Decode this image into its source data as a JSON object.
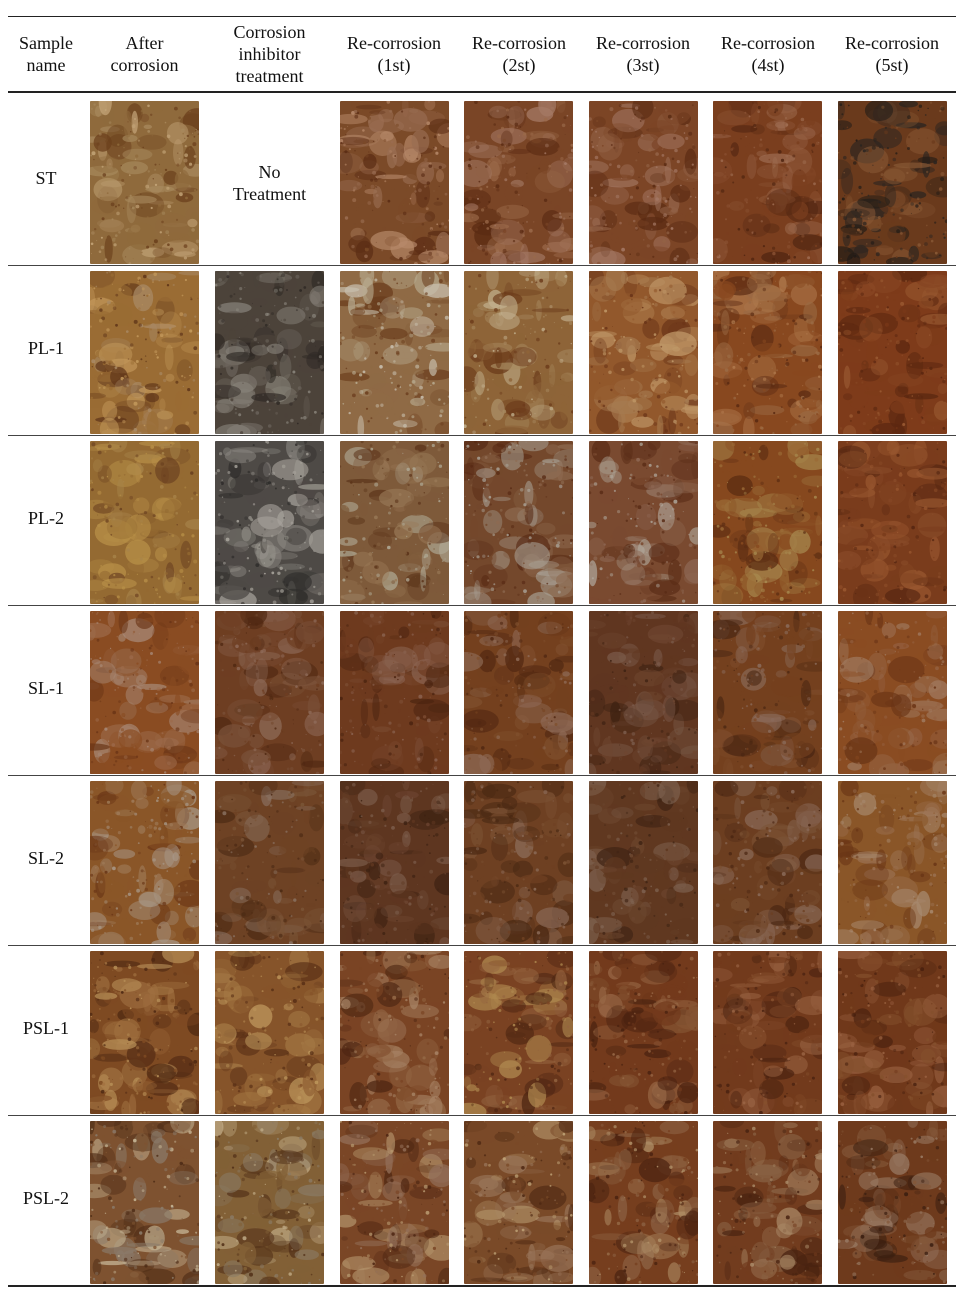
{
  "table": {
    "headers": [
      "Sample\nname",
      "After\ncorrosion",
      "Corrosion\ninhibitor\ntreatment",
      "Re-corrosion\n(1st)",
      "Re-corrosion\n(2st)",
      "Re-corrosion\n(3st)",
      "Re-corrosion\n(4st)",
      "Re-corrosion\n(5st)"
    ],
    "rows": [
      {
        "name": "ST",
        "treatment_text": "No\nTreatment",
        "photos": [
          {
            "desc": "rust-photo",
            "base": "#8f6a3c",
            "c1": "#c3a478",
            "c2": "#6b3f1c",
            "c3": "#a88a5e"
          },
          null,
          {
            "desc": "rust-photo",
            "base": "#7b4a28",
            "c1": "#b7896a",
            "c2": "#5b2c14",
            "c3": "#9a6d52"
          },
          {
            "desc": "rust-photo",
            "base": "#7a4526",
            "c1": "#a57a66",
            "c2": "#5a2a12",
            "c3": "#9b6a4a"
          },
          {
            "desc": "rust-photo",
            "base": "#7c4526",
            "c1": "#a47864",
            "c2": "#5b2b13",
            "c3": "#936246"
          },
          {
            "desc": "rust-photo",
            "base": "#7a3e1e",
            "c1": "#9d6b50",
            "c2": "#4f2410",
            "c3": "#8c5334"
          },
          {
            "desc": "rust-photo",
            "base": "#6a3a1c",
            "c1": "#1f1a16",
            "c2": "#8a5a36",
            "c3": "#2a2420"
          }
        ]
      },
      {
        "name": "PL-1",
        "photos": [
          {
            "desc": "rust-photo",
            "base": "#9a6c34",
            "c1": "#c49a5c",
            "c2": "#5e3418",
            "c3": "#a98a66"
          },
          {
            "desc": "rust-photo",
            "base": "#4c433a",
            "c1": "#6d665e",
            "c2": "#2e2824",
            "c3": "#8a857c"
          },
          {
            "desc": "rust-photo",
            "base": "#8f6a45",
            "c1": "#c8bfae",
            "c2": "#6a3c1c",
            "c3": "#b8ab90"
          },
          {
            "desc": "rust-photo",
            "base": "#8e6438",
            "c1": "#c2b08e",
            "c2": "#6b3a1a",
            "c3": "#a88a60"
          },
          {
            "desc": "rust-photo",
            "base": "#92582c",
            "c1": "#c09868",
            "c2": "#6a3418",
            "c3": "#a57a50"
          },
          {
            "desc": "rust-photo",
            "base": "#88481f",
            "c1": "#b07a4e",
            "c2": "#5a2a12",
            "c3": "#9a6a44"
          },
          {
            "desc": "rust-photo",
            "base": "#7e3b1a",
            "c1": "#9a5a32",
            "c2": "#5b2710",
            "c3": "#8a4a26"
          }
        ]
      },
      {
        "name": "PL-2",
        "photos": [
          {
            "desc": "rust-photo",
            "base": "#946a32",
            "c1": "#b89048",
            "c2": "#6a4020",
            "c3": "#a8844a"
          },
          {
            "desc": "rust-photo",
            "base": "#4e4a46",
            "c1": "#8e8a84",
            "c2": "#2e2c2a",
            "c3": "#a8a49c"
          },
          {
            "desc": "rust-photo",
            "base": "#7e5a3a",
            "c1": "#b0aa96",
            "c2": "#5a3218",
            "c3": "#9a7a58"
          },
          {
            "desc": "rust-photo",
            "base": "#74482c",
            "c1": "#a8a094",
            "c2": "#582a14",
            "c3": "#8e6a50"
          },
          {
            "desc": "rust-photo",
            "base": "#7a4a30",
            "c1": "#b0a89c",
            "c2": "#5a2c16",
            "c3": "#8e6854"
          },
          {
            "desc": "rust-photo",
            "base": "#86481e",
            "c1": "#a88a50",
            "c2": "#5a2c12",
            "c3": "#9a6a36"
          },
          {
            "desc": "rust-photo",
            "base": "#7a3c1c",
            "c1": "#9a5830",
            "c2": "#522410",
            "c3": "#884a28"
          }
        ]
      },
      {
        "name": "SL-1",
        "photos": [
          {
            "desc": "rust-photo",
            "base": "#8a4c22",
            "c1": "#a88a78",
            "c2": "#6a3416",
            "c3": "#9c6a4a"
          },
          {
            "desc": "rust-photo",
            "base": "#6e3e22",
            "c1": "#8e6a58",
            "c2": "#502812",
            "c3": "#7a5038"
          },
          {
            "desc": "rust-photo",
            "base": "#6e3a1e",
            "c1": "#8a6250",
            "c2": "#4c2410",
            "c3": "#7a4a30"
          },
          {
            "desc": "rust-photo",
            "base": "#74401e",
            "c1": "#8e6a56",
            "c2": "#522812",
            "c3": "#80502e"
          },
          {
            "desc": "rust-photo",
            "base": "#603620",
            "c1": "#7a5a4a",
            "c2": "#3e2212",
            "c3": "#6e4630"
          },
          {
            "desc": "rust-photo",
            "base": "#74401e",
            "c1": "#8a6a5a",
            "c2": "#4a2612",
            "c3": "#7e4c2c"
          },
          {
            "desc": "rust-photo",
            "base": "#8a4c22",
            "c1": "#a07a60",
            "c2": "#6a3416",
            "c3": "#946040"
          }
        ]
      },
      {
        "name": "SL-2",
        "photos": [
          {
            "desc": "rust-photo",
            "base": "#8a5628",
            "c1": "#a89888",
            "c2": "#6a3616",
            "c3": "#9e7a58"
          },
          {
            "desc": "rust-photo",
            "base": "#6e4224",
            "c1": "#8a7262",
            "c2": "#4c2a14",
            "c3": "#7a5436"
          },
          {
            "desc": "rust-photo",
            "base": "#5e3620",
            "c1": "#7a5a48",
            "c2": "#3e2212",
            "c3": "#6c4430"
          },
          {
            "desc": "rust-photo",
            "base": "#6e4022",
            "c1": "#8c6c5a",
            "c2": "#4a2812",
            "c3": "#7c5234"
          },
          {
            "desc": "rust-photo",
            "base": "#603820",
            "c1": "#7e6250",
            "c2": "#402414",
            "c3": "#6e4830"
          },
          {
            "desc": "rust-photo",
            "base": "#6c3e20",
            "c1": "#8a6a58",
            "c2": "#4a2612",
            "c3": "#7a5032"
          },
          {
            "desc": "rust-photo",
            "base": "#8a5628",
            "c1": "#a88a70",
            "c2": "#6a3616",
            "c3": "#9a7050"
          }
        ]
      },
      {
        "name": "PSL-1",
        "photos": [
          {
            "desc": "rust-photo",
            "base": "#7e4a22",
            "c1": "#b89058",
            "c2": "#4e2812",
            "c3": "#a07040"
          },
          {
            "desc": "rust-photo",
            "base": "#86542a",
            "c1": "#c09a5e",
            "c2": "#5a3016",
            "c3": "#a47844"
          },
          {
            "desc": "rust-photo",
            "base": "#7a4424",
            "c1": "#a88466",
            "c2": "#4e2612",
            "c3": "#956a48"
          },
          {
            "desc": "rust-photo",
            "base": "#7a4222",
            "c1": "#b08a50",
            "c2": "#4e2612",
            "c3": "#946440"
          },
          {
            "desc": "rust-photo",
            "base": "#733a1c",
            "c1": "#9a6a48",
            "c2": "#4a2210",
            "c3": "#865634"
          },
          {
            "desc": "rust-photo",
            "base": "#723a1c",
            "c1": "#9a6444",
            "c2": "#4a2210",
            "c3": "#86502e"
          },
          {
            "desc": "rust-photo",
            "base": "#70381a",
            "c1": "#986040",
            "c2": "#48200e",
            "c3": "#84502c"
          }
        ]
      },
      {
        "name": "PSL-2",
        "photos": [
          {
            "desc": "rust-photo",
            "base": "#7e5230",
            "c1": "#c8b898",
            "c2": "#4e2c16",
            "c3": "#8a7a6a"
          },
          {
            "desc": "rust-photo",
            "base": "#826036",
            "c1": "#c8b490",
            "c2": "#523018",
            "c3": "#8a7a64"
          },
          {
            "desc": "rust-photo",
            "base": "#7a4626",
            "c1": "#b89a70",
            "c2": "#4e2612",
            "c3": "#94705a"
          },
          {
            "desc": "rust-photo",
            "base": "#7a4a28",
            "c1": "#c0a478",
            "c2": "#4e2812",
            "c3": "#987458"
          },
          {
            "desc": "rust-photo",
            "base": "#763e1e",
            "c1": "#b09068",
            "c2": "#4a2210",
            "c3": "#8e6446"
          },
          {
            "desc": "rust-photo",
            "base": "#723c1e",
            "c1": "#aa8a68",
            "c2": "#482210",
            "c3": "#8a6446"
          },
          {
            "desc": "rust-photo",
            "base": "#6e3a1c",
            "c1": "#9a7c66",
            "c2": "#3a1e10",
            "c3": "#84583a"
          }
        ]
      }
    ]
  }
}
